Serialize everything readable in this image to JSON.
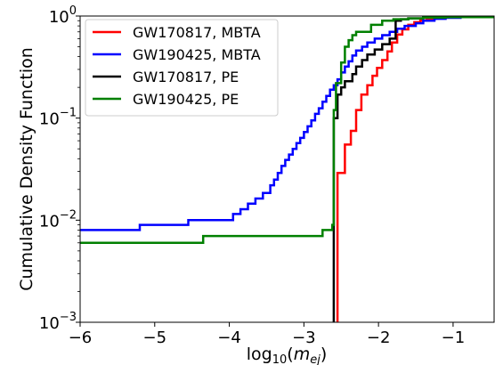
{
  "chart_data": {
    "type": "line",
    "xlabel": "log10(mej)",
    "ylabel": "Cumulative Density Function",
    "xlim": [
      -6,
      -0.45
    ],
    "ylim": [
      0.001,
      1
    ],
    "yscale": "log",
    "grid": false,
    "legend": "top-left",
    "x_ticks": [
      {
        "value": -6,
        "label": "−6"
      },
      {
        "value": -5,
        "label": "−5"
      },
      {
        "value": -4,
        "label": "−4"
      },
      {
        "value": -3,
        "label": "−3"
      },
      {
        "value": -2,
        "label": "−2"
      },
      {
        "value": -1,
        "label": "−1"
      }
    ],
    "y_ticks": [
      {
        "value": 0.001,
        "base": "10",
        "exp": "−3"
      },
      {
        "value": 0.01,
        "base": "10",
        "exp": "−2"
      },
      {
        "value": 0.1,
        "base": "10",
        "exp": "−1"
      },
      {
        "value": 1,
        "base": "10",
        "exp": "0"
      }
    ],
    "series": [
      {
        "name": "GW170817, MBTA",
        "color": "#ff0000",
        "drawstyle": "steps-post",
        "points": [
          [
            -2.55,
            0.001
          ],
          [
            -2.55,
            0.029
          ],
          [
            -2.45,
            0.029
          ],
          [
            -2.45,
            0.055
          ],
          [
            -2.37,
            0.055
          ],
          [
            -2.37,
            0.075
          ],
          [
            -2.3,
            0.075
          ],
          [
            -2.3,
            0.12
          ],
          [
            -2.23,
            0.12
          ],
          [
            -2.23,
            0.17
          ],
          [
            -2.15,
            0.17
          ],
          [
            -2.15,
            0.21
          ],
          [
            -2.08,
            0.21
          ],
          [
            -2.08,
            0.26
          ],
          [
            -2.02,
            0.26
          ],
          [
            -2.02,
            0.31
          ],
          [
            -1.95,
            0.31
          ],
          [
            -1.95,
            0.37
          ],
          [
            -1.88,
            0.37
          ],
          [
            -1.88,
            0.45
          ],
          [
            -1.82,
            0.45
          ],
          [
            -1.82,
            0.55
          ],
          [
            -1.75,
            0.55
          ],
          [
            -1.75,
            0.66
          ],
          [
            -1.68,
            0.66
          ],
          [
            -1.68,
            0.74
          ],
          [
            -1.6,
            0.74
          ],
          [
            -1.6,
            0.82
          ],
          [
            -1.52,
            0.82
          ],
          [
            -1.52,
            0.87
          ],
          [
            -1.44,
            0.87
          ],
          [
            -1.44,
            0.9
          ],
          [
            -1.36,
            0.9
          ],
          [
            -1.36,
            0.93
          ],
          [
            -1.25,
            0.93
          ],
          [
            -1.25,
            0.95
          ],
          [
            -1.12,
            0.95
          ],
          [
            -1.12,
            0.965
          ],
          [
            -0.95,
            0.965
          ],
          [
            -0.95,
            0.975
          ],
          [
            -0.45,
            0.975
          ]
        ]
      },
      {
        "name": "GW190425, MBTA",
        "color": "#0000ff",
        "drawstyle": "steps-post",
        "points": [
          [
            -6.0,
            0.008
          ],
          [
            -5.2,
            0.008
          ],
          [
            -5.2,
            0.009
          ],
          [
            -4.55,
            0.009
          ],
          [
            -4.55,
            0.01
          ],
          [
            -3.95,
            0.01
          ],
          [
            -3.95,
            0.0115
          ],
          [
            -3.85,
            0.0115
          ],
          [
            -3.85,
            0.0128
          ],
          [
            -3.75,
            0.0128
          ],
          [
            -3.75,
            0.0145
          ],
          [
            -3.65,
            0.0145
          ],
          [
            -3.65,
            0.0163
          ],
          [
            -3.55,
            0.0163
          ],
          [
            -3.55,
            0.0185
          ],
          [
            -3.45,
            0.0185
          ],
          [
            -3.45,
            0.022
          ],
          [
            -3.4,
            0.022
          ],
          [
            -3.4,
            0.025
          ],
          [
            -3.35,
            0.025
          ],
          [
            -3.35,
            0.029
          ],
          [
            -3.3,
            0.029
          ],
          [
            -3.3,
            0.034
          ],
          [
            -3.25,
            0.034
          ],
          [
            -3.25,
            0.039
          ],
          [
            -3.2,
            0.039
          ],
          [
            -3.2,
            0.044
          ],
          [
            -3.15,
            0.044
          ],
          [
            -3.15,
            0.05
          ],
          [
            -3.1,
            0.05
          ],
          [
            -3.1,
            0.057
          ],
          [
            -3.05,
            0.057
          ],
          [
            -3.05,
            0.064
          ],
          [
            -3.0,
            0.064
          ],
          [
            -3.0,
            0.073
          ],
          [
            -2.95,
            0.073
          ],
          [
            -2.95,
            0.083
          ],
          [
            -2.9,
            0.083
          ],
          [
            -2.9,
            0.095
          ],
          [
            -2.85,
            0.095
          ],
          [
            -2.85,
            0.11
          ],
          [
            -2.8,
            0.11
          ],
          [
            -2.8,
            0.125
          ],
          [
            -2.75,
            0.125
          ],
          [
            -2.75,
            0.145
          ],
          [
            -2.7,
            0.145
          ],
          [
            -2.7,
            0.165
          ],
          [
            -2.65,
            0.165
          ],
          [
            -2.65,
            0.19
          ],
          [
            -2.6,
            0.19
          ],
          [
            -2.6,
            0.21
          ],
          [
            -2.55,
            0.21
          ],
          [
            -2.55,
            0.24
          ],
          [
            -2.5,
            0.24
          ],
          [
            -2.5,
            0.28
          ],
          [
            -2.45,
            0.28
          ],
          [
            -2.45,
            0.32
          ],
          [
            -2.4,
            0.32
          ],
          [
            -2.4,
            0.36
          ],
          [
            -2.35,
            0.36
          ],
          [
            -2.35,
            0.41
          ],
          [
            -2.3,
            0.41
          ],
          [
            -2.3,
            0.46
          ],
          [
            -2.22,
            0.46
          ],
          [
            -2.22,
            0.5
          ],
          [
            -2.15,
            0.5
          ],
          [
            -2.15,
            0.55
          ],
          [
            -2.05,
            0.55
          ],
          [
            -2.05,
            0.6
          ],
          [
            -1.95,
            0.6
          ],
          [
            -1.95,
            0.65
          ],
          [
            -1.85,
            0.65
          ],
          [
            -1.85,
            0.7
          ],
          [
            -1.75,
            0.7
          ],
          [
            -1.75,
            0.75
          ],
          [
            -1.65,
            0.75
          ],
          [
            -1.65,
            0.8
          ],
          [
            -1.5,
            0.8
          ],
          [
            -1.5,
            0.85
          ],
          [
            -1.4,
            0.85
          ],
          [
            -1.4,
            0.9
          ],
          [
            -1.25,
            0.9
          ],
          [
            -1.25,
            0.94
          ],
          [
            -1.1,
            0.94
          ],
          [
            -1.1,
            0.96
          ],
          [
            -0.9,
            0.96
          ],
          [
            -0.9,
            0.975
          ],
          [
            -0.45,
            0.975
          ]
        ]
      },
      {
        "name": "GW170817, PE",
        "color": "#000000",
        "drawstyle": "steps-post",
        "points": [
          [
            -2.6,
            0.001
          ],
          [
            -2.6,
            0.1
          ],
          [
            -2.55,
            0.1
          ],
          [
            -2.55,
            0.17
          ],
          [
            -2.5,
            0.17
          ],
          [
            -2.5,
            0.2
          ],
          [
            -2.45,
            0.2
          ],
          [
            -2.45,
            0.23
          ],
          [
            -2.35,
            0.23
          ],
          [
            -2.35,
            0.27
          ],
          [
            -2.3,
            0.27
          ],
          [
            -2.3,
            0.32
          ],
          [
            -2.22,
            0.32
          ],
          [
            -2.22,
            0.37
          ],
          [
            -2.15,
            0.37
          ],
          [
            -2.15,
            0.42
          ],
          [
            -2.05,
            0.42
          ],
          [
            -2.05,
            0.47
          ],
          [
            -1.95,
            0.47
          ],
          [
            -1.95,
            0.53
          ],
          [
            -1.85,
            0.53
          ],
          [
            -1.85,
            0.6
          ],
          [
            -1.77,
            0.6
          ],
          [
            -1.77,
            0.9
          ],
          [
            -1.7,
            0.9
          ],
          [
            -1.7,
            0.93
          ],
          [
            -1.6,
            0.93
          ],
          [
            -1.6,
            0.95
          ],
          [
            -1.4,
            0.95
          ],
          [
            -1.4,
            0.965
          ],
          [
            -1.1,
            0.965
          ],
          [
            -1.1,
            0.975
          ],
          [
            -0.45,
            0.975
          ]
        ]
      },
      {
        "name": "GW190425, PE",
        "color": "#008000",
        "drawstyle": "steps-post",
        "points": [
          [
            -6.0,
            0.006
          ],
          [
            -4.35,
            0.006
          ],
          [
            -4.35,
            0.007
          ],
          [
            -2.75,
            0.007
          ],
          [
            -2.75,
            0.008
          ],
          [
            -2.62,
            0.008
          ],
          [
            -2.62,
            0.009
          ],
          [
            -2.6,
            0.009
          ],
          [
            -2.6,
            0.12
          ],
          [
            -2.57,
            0.12
          ],
          [
            -2.57,
            0.22
          ],
          [
            -2.5,
            0.22
          ],
          [
            -2.5,
            0.35
          ],
          [
            -2.45,
            0.35
          ],
          [
            -2.45,
            0.5
          ],
          [
            -2.4,
            0.5
          ],
          [
            -2.4,
            0.58
          ],
          [
            -2.35,
            0.58
          ],
          [
            -2.35,
            0.65
          ],
          [
            -2.3,
            0.65
          ],
          [
            -2.3,
            0.7
          ],
          [
            -2.1,
            0.7
          ],
          [
            -2.1,
            0.82
          ],
          [
            -1.95,
            0.82
          ],
          [
            -1.95,
            0.9
          ],
          [
            -1.8,
            0.9
          ],
          [
            -1.8,
            0.93
          ],
          [
            -1.6,
            0.93
          ],
          [
            -1.6,
            0.95
          ],
          [
            -1.4,
            0.95
          ],
          [
            -1.4,
            0.965
          ],
          [
            -1.1,
            0.965
          ],
          [
            -1.1,
            0.975
          ],
          [
            -0.45,
            0.975
          ]
        ]
      }
    ]
  }
}
